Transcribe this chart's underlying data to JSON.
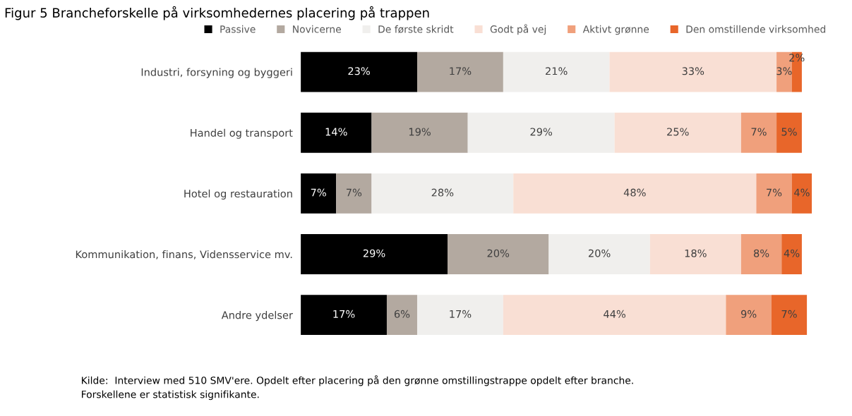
{
  "chart_data": {
    "type": "bar",
    "orientation": "horizontal",
    "stacked": true,
    "title": "Figur 5 Brancheforskelle på virksomhedernes placering på trappen",
    "categories": [
      "Industri, forsyning og byggeri",
      "Handel og transport",
      "Hotel og restauration",
      "Kommunikation, finans, Vidensservice mv.",
      "Andre ydelser"
    ],
    "series": [
      {
        "name": "Passive",
        "color": "#000000",
        "values": [
          23,
          14,
          7,
          29,
          17
        ],
        "value_labels": [
          "23%",
          "14%",
          "7%",
          "29%",
          "17%"
        ]
      },
      {
        "name": "Novicerne",
        "color": "#b3a9a0",
        "values": [
          17,
          19,
          7,
          20,
          6
        ],
        "value_labels": [
          "17%",
          "19%",
          "7%",
          "20%",
          "6%"
        ]
      },
      {
        "name": "De første skridt",
        "color": "#f0efed",
        "values": [
          21,
          29,
          28,
          20,
          17
        ],
        "value_labels": [
          "21%",
          "29%",
          "28%",
          "20%",
          "17%"
        ]
      },
      {
        "name": "Godt på vej",
        "color": "#f9dfd4",
        "values": [
          33,
          25,
          48,
          18,
          44
        ],
        "value_labels": [
          "33%",
          "25%",
          "48%",
          "18%",
          "44%"
        ]
      },
      {
        "name": "Aktivt grønne",
        "color": "#f0a07c",
        "values": [
          3,
          7,
          7,
          8,
          9
        ],
        "value_labels": [
          "3%",
          "7%",
          "7%",
          "8%",
          "9%"
        ]
      },
      {
        "name": "Den omstillende virksomhed",
        "color": "#e8662a",
        "values": [
          2,
          5,
          4,
          4,
          7
        ],
        "value_labels": [
          "2%",
          "5%",
          "4%",
          "4%",
          "7%"
        ]
      }
    ],
    "legend": "top",
    "grid": false,
    "tick_labels": "y",
    "annotations": [
      "Kilde:  Interview med 510 SMV'ere. Opdelt efter placering på den grønne omstillingstrappe opdelt efter branche.",
      "Forskellene er statistisk signifikante."
    ]
  }
}
